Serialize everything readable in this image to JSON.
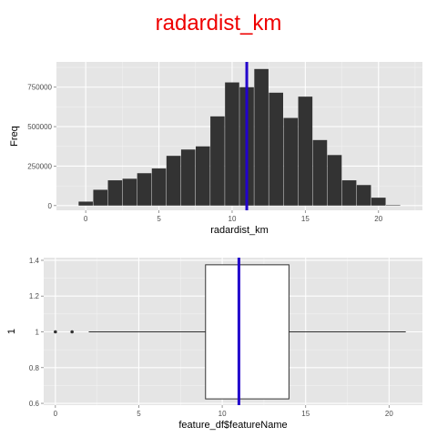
{
  "title": "radardist_km",
  "colors": {
    "title": "#ee0000",
    "panel": "#e5e5e5",
    "grid_major": "#ffffff",
    "grid_minor": "#f2f2f2",
    "bar": "#333333",
    "mean_line": "#2200cc",
    "box_fill": "#ffffff",
    "box_stroke": "#333333"
  },
  "chart_data": [
    {
      "type": "bar",
      "xlabel": "radardist_km",
      "ylabel": "Freq",
      "xlim": [
        -2,
        23
      ],
      "ylim": [
        -30000,
        910000
      ],
      "xticks": [
        0,
        5,
        10,
        15,
        20
      ],
      "yticks": [
        0,
        250000,
        500000,
        750000
      ],
      "x": [
        0,
        1,
        2,
        3,
        4,
        5,
        6,
        7,
        8,
        9,
        10,
        11,
        12,
        13,
        14,
        15,
        16,
        17,
        18,
        19,
        20,
        21
      ],
      "values": [
        25000,
        100000,
        160000,
        170000,
        205000,
        235000,
        315000,
        355000,
        375000,
        565000,
        780000,
        750000,
        865000,
        715000,
        555000,
        690000,
        415000,
        320000,
        160000,
        130000,
        50000,
        3000
      ],
      "mean_line": 11
    },
    {
      "type": "boxplot",
      "xlabel": "feature_df$featureName",
      "ylabel": "1",
      "xlim": [
        -0.7,
        22.0
      ],
      "ylim": [
        0.59,
        1.415
      ],
      "xticks": [
        0,
        5,
        10,
        15,
        20
      ],
      "yticks": [
        0.6,
        0.8,
        1.0,
        1.2,
        1.4
      ],
      "box": {
        "y": 1.0,
        "whisker_low": 2,
        "q1": 9,
        "q3": 14,
        "whisker_high": 21,
        "outliers": [
          0,
          1
        ]
      },
      "mean_line": 11
    }
  ]
}
